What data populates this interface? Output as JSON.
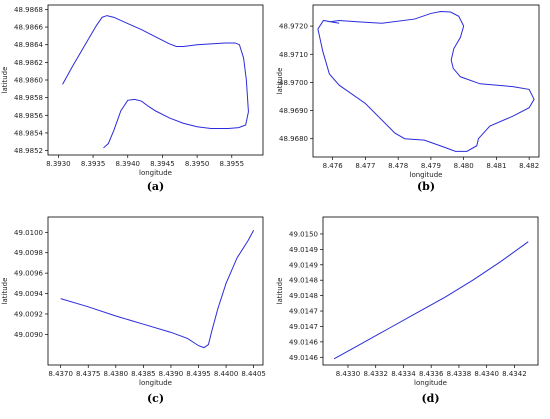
{
  "colors": {
    "line": "#2b2bdb",
    "axis": "#000000",
    "background": "#ffffff"
  },
  "chart_data": [
    {
      "id": "a",
      "type": "line",
      "caption": "(a)",
      "xlabel": "longitude",
      "ylabel": "latitude",
      "xlim": [
        8.39285,
        8.39595
      ],
      "ylim": [
        48.98515,
        48.98685
      ],
      "grid": false,
      "xticks": [
        8.393,
        8.3935,
        8.394,
        8.3945,
        8.395,
        8.3955
      ],
      "xtick_labels": [
        "8.3930",
        "8.3935",
        "8.3940",
        "8.3945",
        "8.3950",
        "8.3955"
      ],
      "yticks": [
        48.9852,
        48.9854,
        48.9856,
        48.9858,
        48.986,
        48.9862,
        48.9864,
        48.9866,
        48.9868
      ],
      "ytick_labels": [
        "48.9852",
        "48.9854",
        "48.9856",
        "48.9858",
        "48.9860",
        "48.9862",
        "48.9864",
        "48.9866",
        "48.9868"
      ],
      "x": [
        8.39306,
        8.3932,
        8.3934,
        8.39355,
        8.39363,
        8.3937,
        8.3938,
        8.394,
        8.3942,
        8.3944,
        8.3946,
        8.3947,
        8.3948,
        8.395,
        8.3952,
        8.3954,
        8.39555,
        8.39561,
        8.39567,
        8.39571,
        8.39574,
        8.3957,
        8.3956,
        8.39545,
        8.3952,
        8.395,
        8.3948,
        8.3946,
        8.3944,
        8.3943,
        8.3942,
        8.3941,
        8.394,
        8.3939,
        8.3938,
        8.39372,
        8.39365
      ],
      "y": [
        48.98595,
        48.98615,
        48.98642,
        48.98662,
        48.98671,
        48.98673,
        48.98671,
        48.98664,
        48.98657,
        48.98649,
        48.98641,
        48.98638,
        48.98638,
        48.9864,
        48.98641,
        48.98642,
        48.98642,
        48.9864,
        48.98625,
        48.986,
        48.98564,
        48.98549,
        48.98546,
        48.98545,
        48.98545,
        48.98547,
        48.98551,
        48.98557,
        48.98565,
        48.9857,
        48.98576,
        48.98578,
        48.98577,
        48.98565,
        48.98543,
        48.98528,
        48.98523
      ]
    },
    {
      "id": "b",
      "type": "line",
      "caption": "(b)",
      "xlabel": "longitude",
      "ylabel": "latitude",
      "xlim": [
        8.4754,
        8.4823
      ],
      "ylim": [
        48.96735,
        48.97275
      ],
      "grid": false,
      "xticks": [
        8.476,
        8.477,
        8.478,
        8.479,
        8.48,
        8.481,
        8.482
      ],
      "xtick_labels": [
        "8.476",
        "8.477",
        "8.478",
        "8.479",
        "8.480",
        "8.481",
        "8.482"
      ],
      "yticks": [
        48.968,
        48.969,
        48.97,
        48.971,
        48.972
      ],
      "ytick_labels": [
        "48.9680",
        "48.9690",
        "48.9700",
        "48.9710",
        "48.9720"
      ],
      "x": [
        8.4759,
        8.4762,
        8.4768,
        8.4775,
        8.4785,
        8.479,
        8.4793,
        8.4796,
        8.47985,
        8.48,
        8.4799,
        8.4797,
        8.47962,
        8.47968,
        8.4799,
        8.4805,
        8.4815,
        8.482,
        8.48215,
        8.482,
        8.4815,
        8.4808,
        8.48045,
        8.4804,
        8.4801,
        8.47975,
        8.4794,
        8.4788,
        8.4782,
        8.4779,
        8.477,
        8.4762,
        8.4759,
        8.4757,
        8.47555,
        8.47572,
        8.4762
      ],
      "y": [
        48.97215,
        48.9722,
        48.97215,
        48.9721,
        48.97225,
        48.97245,
        48.97252,
        48.9725,
        48.97235,
        48.972,
        48.9716,
        48.9712,
        48.9708,
        48.9705,
        48.9702,
        48.96995,
        48.96985,
        48.96975,
        48.9694,
        48.9691,
        48.9688,
        48.96845,
        48.968,
        48.96775,
        48.96755,
        48.96755,
        48.9677,
        48.96795,
        48.968,
        48.9682,
        48.96925,
        48.9699,
        48.9703,
        48.9711,
        48.9719,
        48.9722,
        48.9721
      ]
    },
    {
      "id": "c",
      "type": "line",
      "caption": "(c)",
      "xlabel": "longitude",
      "ylabel": "latitude",
      "xlim": [
        8.43677,
        8.44067
      ],
      "ylim": [
        49.0087,
        49.01015
      ],
      "grid": false,
      "xticks": [
        8.437,
        8.4375,
        8.438,
        8.4385,
        8.439,
        8.4395,
        8.44,
        8.4405
      ],
      "xtick_labels": [
        "8.4370",
        "8.4375",
        "8.4380",
        "8.4385",
        "8.4390",
        "8.4395",
        "8.4400",
        "8.4405"
      ],
      "yticks": [
        49.009,
        49.0092,
        49.0094,
        49.0096,
        49.0098,
        49.01
      ],
      "ytick_labels": [
        "49.0090",
        "49.0092",
        "49.0094",
        "49.0096",
        "49.0098",
        "49.0100"
      ],
      "x": [
        8.437,
        8.4375,
        8.438,
        8.4385,
        8.439,
        8.4393,
        8.4395,
        8.4396,
        8.43968,
        8.43975,
        8.43985,
        8.44,
        8.4402,
        8.4404,
        8.4405
      ],
      "y": [
        49.00935,
        49.00927,
        49.00918,
        49.0091,
        49.00902,
        49.00896,
        49.00889,
        49.00887,
        49.0089,
        49.00905,
        49.00925,
        49.0095,
        49.00975,
        49.00992,
        49.01002
      ]
    },
    {
      "id": "d",
      "type": "line",
      "caption": "(d)",
      "xlabel": "longitude",
      "ylabel": "latitude",
      "xlim": [
        8.43282,
        8.43437
      ],
      "ylim": [
        49.014575,
        49.015055
      ],
      "grid": false,
      "xticks": [
        8.433,
        8.4332,
        8.4334,
        8.4336,
        8.4338,
        8.434,
        8.4342
      ],
      "xtick_labels": [
        "8.4330",
        "8.4332",
        "8.4334",
        "8.4336",
        "8.4338",
        "8.4340",
        "8.4342"
      ],
      "yticks": [
        49.0146,
        49.01465,
        49.0147,
        49.01475,
        49.0148,
        49.01485,
        49.0149,
        49.01495,
        49.015
      ],
      "ytick_labels": [
        "49.0146",
        "49.0146",
        "49.0147",
        "49.0147",
        "49.0148",
        "49.0148",
        "49.0149",
        "49.0149",
        "49.0150"
      ],
      "x": [
        8.4329,
        8.4331,
        8.4333,
        8.4335,
        8.4337,
        8.4339,
        8.4341,
        8.4343
      ],
      "y": [
        49.014595,
        49.014645,
        49.014695,
        49.014745,
        49.014795,
        49.01485,
        49.01491,
        49.014975
      ]
    }
  ]
}
